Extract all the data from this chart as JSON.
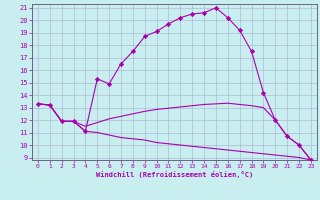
{
  "xlabel": "Windchill (Refroidissement éolien,°C)",
  "bg_color": "#c8eef0",
  "grid_color": "#b0b8d8",
  "line_color": "#aa00aa",
  "spine_color": "#666688",
  "xlim": [
    -0.5,
    23.5
  ],
  "ylim": [
    8.8,
    21.3
  ],
  "xticks": [
    0,
    1,
    2,
    3,
    4,
    5,
    6,
    7,
    8,
    9,
    10,
    11,
    12,
    13,
    14,
    15,
    16,
    17,
    18,
    19,
    20,
    21,
    22,
    23
  ],
  "yticks": [
    9,
    10,
    11,
    12,
    13,
    14,
    15,
    16,
    17,
    18,
    19,
    20,
    21
  ],
  "line1_x": [
    0,
    1,
    2,
    3,
    4,
    5,
    6,
    7,
    8,
    9,
    10,
    11,
    12,
    13,
    14,
    15,
    16,
    17,
    18,
    19,
    20,
    21,
    22,
    23
  ],
  "line1_y": [
    13.3,
    13.2,
    11.9,
    11.9,
    11.1,
    11.0,
    10.8,
    10.6,
    10.5,
    10.4,
    10.2,
    10.1,
    10.0,
    9.9,
    9.8,
    9.7,
    9.6,
    9.5,
    9.4,
    9.3,
    9.2,
    9.1,
    9.0,
    8.8
  ],
  "line2_x": [
    0,
    1,
    2,
    3,
    4,
    5,
    6,
    7,
    8,
    9,
    10,
    11,
    12,
    13,
    14,
    15,
    16,
    17,
    18,
    19,
    20,
    21,
    22,
    23
  ],
  "line2_y": [
    13.3,
    13.2,
    11.9,
    11.9,
    11.5,
    11.8,
    12.1,
    12.3,
    12.5,
    12.7,
    12.85,
    12.95,
    13.05,
    13.15,
    13.25,
    13.3,
    13.35,
    13.25,
    13.15,
    13.0,
    12.0,
    10.7,
    10.0,
    8.8
  ],
  "line3_x": [
    0,
    1,
    2,
    3,
    4,
    5,
    6,
    7,
    8,
    9,
    10,
    11,
    12,
    13,
    14,
    15,
    16,
    17,
    18,
    19,
    20,
    21,
    22,
    23
  ],
  "line3_y": [
    13.3,
    13.2,
    11.9,
    11.9,
    11.1,
    15.3,
    14.9,
    16.5,
    17.5,
    18.7,
    19.1,
    19.7,
    20.2,
    20.5,
    20.6,
    21.0,
    20.2,
    19.2,
    17.5,
    14.2,
    12.0,
    10.7,
    10.0,
    8.8
  ]
}
